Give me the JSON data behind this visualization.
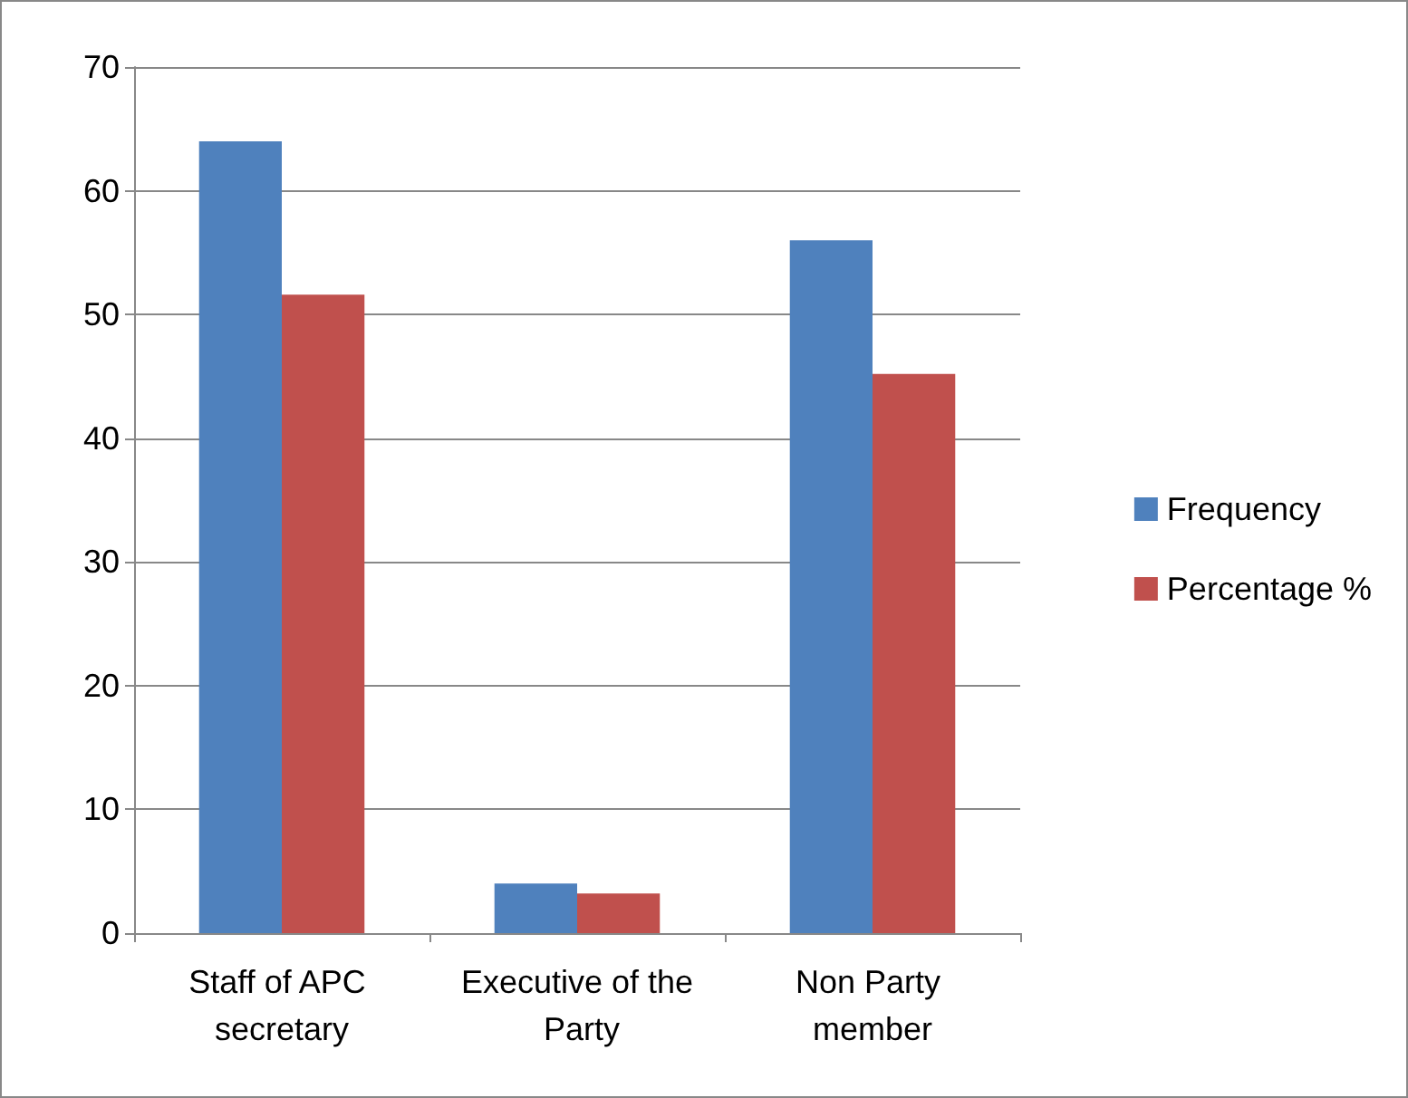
{
  "chart_data": {
    "type": "bar",
    "categories": [
      "Staff of APC secretary",
      "Executive of the Party",
      "Non Party member"
    ],
    "series": [
      {
        "name": "Frequency",
        "color": "#4f81bd",
        "values": [
          64,
          4,
          56
        ]
      },
      {
        "name": "Percentage %",
        "color": "#c0504d",
        "values": [
          51.6,
          3.2,
          45.2
        ]
      }
    ],
    "ylim": [
      0,
      70
    ],
    "yticks": [
      0,
      10,
      20,
      30,
      40,
      50,
      60,
      70
    ],
    "grid": "y",
    "legend": "right"
  }
}
